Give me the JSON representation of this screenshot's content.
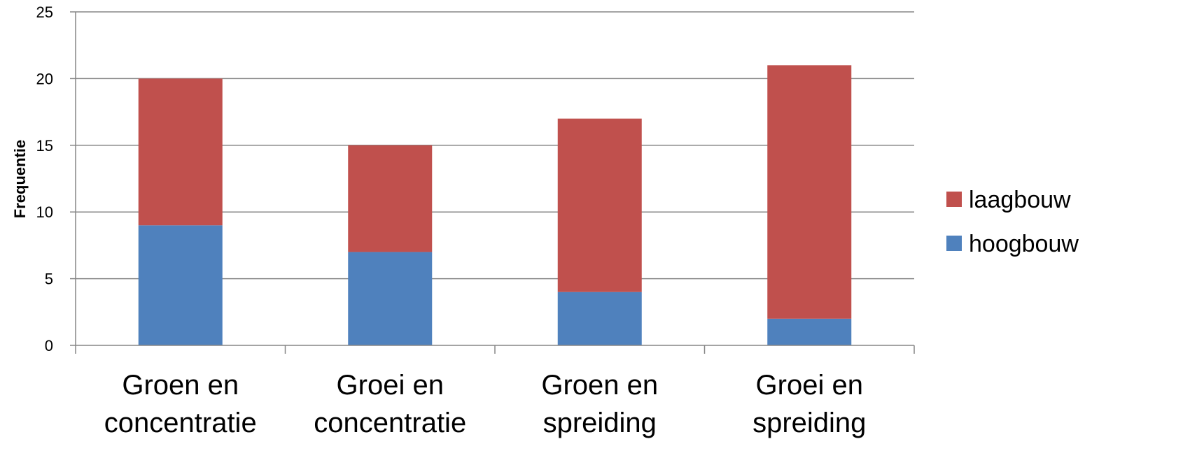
{
  "chart_data": {
    "type": "bar",
    "stacked": true,
    "title": "",
    "xlabel": "",
    "ylabel": "Frequentie",
    "ylim": [
      0,
      25
    ],
    "yticks": [
      0,
      5,
      10,
      15,
      20,
      25
    ],
    "grid": true,
    "legend_position": "right",
    "categories": [
      [
        "Groen en",
        "concentratie"
      ],
      [
        "Groei en",
        "concentratie"
      ],
      [
        "Groen en",
        "spreiding"
      ],
      [
        "Groei en",
        "spreiding"
      ]
    ],
    "series": [
      {
        "name": "hoogbouw",
        "color": "#4F81BD",
        "values": [
          9,
          7,
          4,
          2
        ]
      },
      {
        "name": "laagbouw",
        "color": "#C0504D",
        "values": [
          11,
          8,
          13,
          19
        ]
      }
    ],
    "legend_order": [
      "laagbouw",
      "hoogbouw"
    ]
  }
}
